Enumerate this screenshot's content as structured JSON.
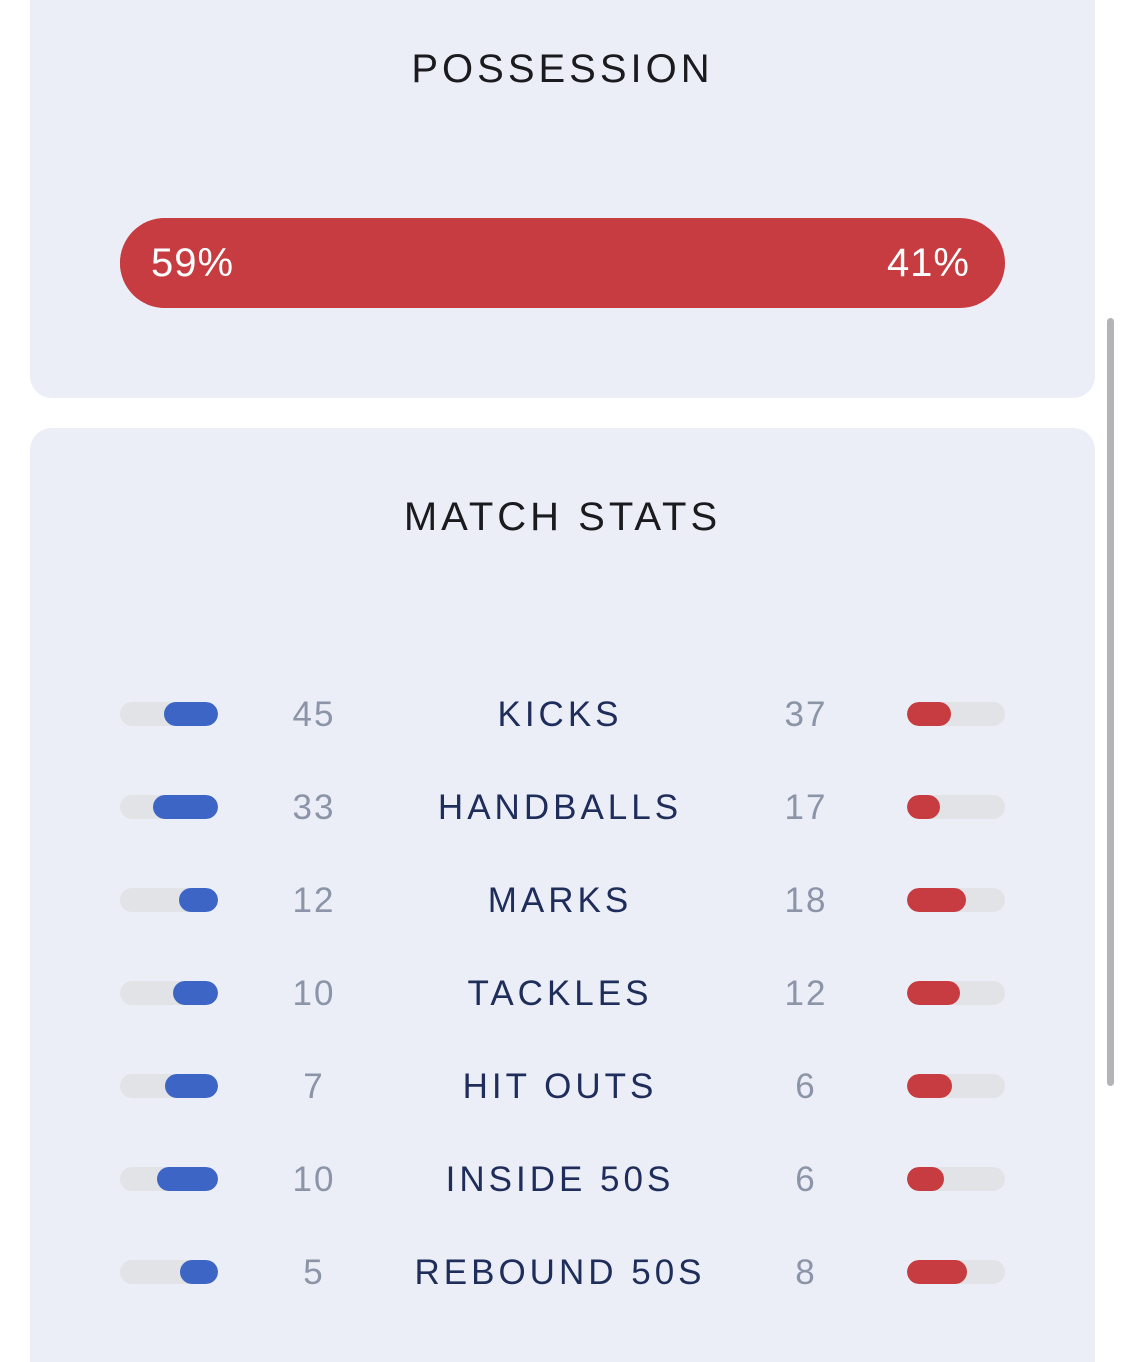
{
  "colors": {
    "home": "#3d65c6",
    "away": "#c63c40",
    "track": "#e2e3e6",
    "card_bg": "#ebeef6"
  },
  "possession": {
    "title": "POSSESSION",
    "home_percent": "59%",
    "away_percent": "41%"
  },
  "match_stats": {
    "title": "MATCH STATS",
    "rows": [
      {
        "label": "KICKS",
        "home": "45",
        "away": "37"
      },
      {
        "label": "HANDBALLS",
        "home": "33",
        "away": "17"
      },
      {
        "label": "MARKS",
        "home": "12",
        "away": "18"
      },
      {
        "label": "TACKLES",
        "home": "10",
        "away": "12"
      },
      {
        "label": "HIT OUTS",
        "home": "7",
        "away": "6"
      },
      {
        "label": "INSIDE 50S",
        "home": "10",
        "away": "6"
      },
      {
        "label": "REBOUND 50S",
        "home": "5",
        "away": "8"
      }
    ]
  }
}
